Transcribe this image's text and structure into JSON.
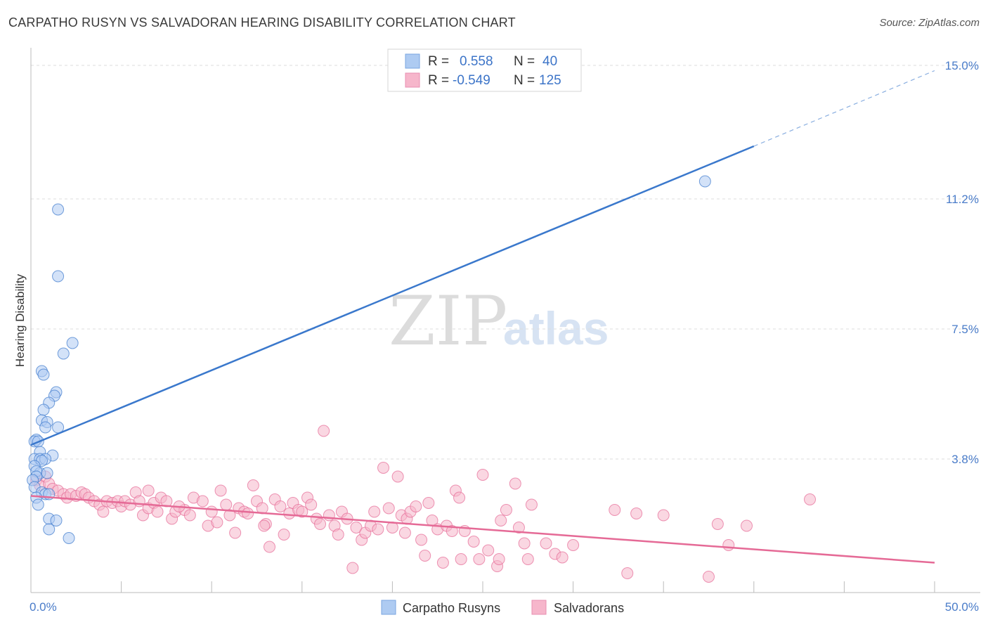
{
  "title": "CARPATHO RUSYN VS SALVADORAN HEARING DISABILITY CORRELATION CHART",
  "source": "Source: ZipAtlas.com",
  "watermark": {
    "zip": "ZIP",
    "atlas": "atlas"
  },
  "colors": {
    "blue": "#3a78cc",
    "blue_fill": "#aecbf2",
    "pink": "#e56a96",
    "pink_fill": "#f6b6cb",
    "grid": "#dcdcdc",
    "tick": "#4a7cc9"
  },
  "legend": {
    "rows": [
      {
        "r_label": "R =",
        "r_value": "0.558",
        "n_label": "N =",
        "n_value": "40"
      },
      {
        "r_label": "R =",
        "r_value": "-0.549",
        "n_label": "N =",
        "n_value": "125"
      }
    ]
  },
  "chart_data": {
    "type": "scatter",
    "title": "CARPATHO RUSYN VS SALVADORAN HEARING DISABILITY CORRELATION CHART",
    "xlabel": "",
    "ylabel": "Hearing Disability",
    "xlim": [
      0,
      50
    ],
    "ylim": [
      0,
      15.3
    ],
    "x_tick_labels": [
      "0.0%",
      "50.0%"
    ],
    "y_ticks": [
      3.8,
      7.5,
      11.2,
      15.0
    ],
    "y_tick_labels": [
      "3.8%",
      "7.5%",
      "11.2%",
      "15.0%"
    ],
    "grid": true,
    "series": [
      {
        "name": "Carpatho Rusyns",
        "color": "blue",
        "points": [
          [
            1.5,
            10.9
          ],
          [
            1.5,
            9.0
          ],
          [
            2.3,
            7.1
          ],
          [
            1.8,
            6.8
          ],
          [
            0.6,
            6.3
          ],
          [
            0.7,
            6.2
          ],
          [
            1.4,
            5.7
          ],
          [
            1.3,
            5.6
          ],
          [
            1.0,
            5.4
          ],
          [
            0.7,
            5.2
          ],
          [
            0.6,
            4.9
          ],
          [
            0.9,
            4.85
          ],
          [
            1.5,
            4.7
          ],
          [
            0.8,
            4.7
          ],
          [
            0.3,
            4.35
          ],
          [
            0.2,
            4.3
          ],
          [
            0.4,
            4.3
          ],
          [
            0.5,
            4.0
          ],
          [
            1.2,
            3.9
          ],
          [
            0.2,
            3.8
          ],
          [
            0.5,
            3.8
          ],
          [
            0.8,
            3.8
          ],
          [
            0.6,
            3.75
          ],
          [
            0.2,
            3.6
          ],
          [
            0.5,
            3.4
          ],
          [
            0.3,
            3.45
          ],
          [
            0.9,
            3.4
          ],
          [
            0.3,
            3.3
          ],
          [
            0.1,
            3.2
          ],
          [
            0.2,
            3.0
          ],
          [
            0.6,
            2.85
          ],
          [
            0.8,
            2.8
          ],
          [
            1.0,
            2.8
          ],
          [
            0.3,
            2.7
          ],
          [
            0.4,
            2.5
          ],
          [
            1.0,
            2.1
          ],
          [
            1.4,
            2.05
          ],
          [
            1.0,
            1.8
          ],
          [
            2.1,
            1.55
          ],
          [
            37.3,
            11.7
          ]
        ],
        "trend": {
          "x0": 0,
          "y0": 4.2,
          "x1": 40,
          "y1": 12.7,
          "x_dash_end": 50,
          "y_dash_end": 14.85
        }
      },
      {
        "name": "Salvadorans",
        "color": "pink",
        "points": [
          [
            0.3,
            3.2
          ],
          [
            0.5,
            3.05
          ],
          [
            0.8,
            3.3
          ],
          [
            1.0,
            3.1
          ],
          [
            1.2,
            2.95
          ],
          [
            1.5,
            2.9
          ],
          [
            1.8,
            2.8
          ],
          [
            2.0,
            2.7
          ],
          [
            2.2,
            2.8
          ],
          [
            2.5,
            2.75
          ],
          [
            2.8,
            2.85
          ],
          [
            3.0,
            2.8
          ],
          [
            3.2,
            2.7
          ],
          [
            3.5,
            2.6
          ],
          [
            3.8,
            2.5
          ],
          [
            4.0,
            2.3
          ],
          [
            4.2,
            2.6
          ],
          [
            4.5,
            2.55
          ],
          [
            4.8,
            2.6
          ],
          [
            5.0,
            2.45
          ],
          [
            5.2,
            2.6
          ],
          [
            5.5,
            2.5
          ],
          [
            5.8,
            2.85
          ],
          [
            6.0,
            2.6
          ],
          [
            6.2,
            2.2
          ],
          [
            6.5,
            2.4
          ],
          [
            6.8,
            2.55
          ],
          [
            7.0,
            2.3
          ],
          [
            7.2,
            2.7
          ],
          [
            7.5,
            2.6
          ],
          [
            7.8,
            2.1
          ],
          [
            8.0,
            2.3
          ],
          [
            8.5,
            2.35
          ],
          [
            8.8,
            2.2
          ],
          [
            9.0,
            2.7
          ],
          [
            9.5,
            2.6
          ],
          [
            9.8,
            1.9
          ],
          [
            10.0,
            2.3
          ],
          [
            10.3,
            2.0
          ],
          [
            10.5,
            2.9
          ],
          [
            10.8,
            2.5
          ],
          [
            11.0,
            2.2
          ],
          [
            11.3,
            1.7
          ],
          [
            11.5,
            2.4
          ],
          [
            11.8,
            2.3
          ],
          [
            12.0,
            2.25
          ],
          [
            12.3,
            3.05
          ],
          [
            12.5,
            2.6
          ],
          [
            12.8,
            2.4
          ],
          [
            13.0,
            1.95
          ],
          [
            13.2,
            1.3
          ],
          [
            13.5,
            2.65
          ],
          [
            13.8,
            2.45
          ],
          [
            14.0,
            1.65
          ],
          [
            14.3,
            2.25
          ],
          [
            14.5,
            2.55
          ],
          [
            14.8,
            2.35
          ],
          [
            15.0,
            2.3
          ],
          [
            15.3,
            2.7
          ],
          [
            15.5,
            2.5
          ],
          [
            15.8,
            2.1
          ],
          [
            16.0,
            1.95
          ],
          [
            16.2,
            4.6
          ],
          [
            16.5,
            2.2
          ],
          [
            16.8,
            1.9
          ],
          [
            17.0,
            1.65
          ],
          [
            17.2,
            2.3
          ],
          [
            17.5,
            2.1
          ],
          [
            17.8,
            0.7
          ],
          [
            18.0,
            1.85
          ],
          [
            18.3,
            1.5
          ],
          [
            18.5,
            1.7
          ],
          [
            18.8,
            1.9
          ],
          [
            19.0,
            2.3
          ],
          [
            19.2,
            1.8
          ],
          [
            19.5,
            3.55
          ],
          [
            19.8,
            2.4
          ],
          [
            20.0,
            1.85
          ],
          [
            20.3,
            3.3
          ],
          [
            20.5,
            2.2
          ],
          [
            20.8,
            2.1
          ],
          [
            21.0,
            2.3
          ],
          [
            21.3,
            2.45
          ],
          [
            21.6,
            1.5
          ],
          [
            21.8,
            1.05
          ],
          [
            22.0,
            2.55
          ],
          [
            22.2,
            2.05
          ],
          [
            22.5,
            1.8
          ],
          [
            22.8,
            0.85
          ],
          [
            23.0,
            1.9
          ],
          [
            23.3,
            1.75
          ],
          [
            23.5,
            2.9
          ],
          [
            23.8,
            0.95
          ],
          [
            24.0,
            1.75
          ],
          [
            24.5,
            1.45
          ],
          [
            24.8,
            0.95
          ],
          [
            25.0,
            3.35
          ],
          [
            25.3,
            1.2
          ],
          [
            25.8,
            0.75
          ],
          [
            25.9,
            0.95
          ],
          [
            26.0,
            2.05
          ],
          [
            26.3,
            2.35
          ],
          [
            26.8,
            3.1
          ],
          [
            27.0,
            1.85
          ],
          [
            27.3,
            1.4
          ],
          [
            27.5,
            0.95
          ],
          [
            27.7,
            2.5
          ],
          [
            28.5,
            1.4
          ],
          [
            29.0,
            1.1
          ],
          [
            29.4,
            1.0
          ],
          [
            30.0,
            1.35
          ],
          [
            32.3,
            2.35
          ],
          [
            33.0,
            0.55
          ],
          [
            33.5,
            2.25
          ],
          [
            35.0,
            2.2
          ],
          [
            37.5,
            0.45
          ],
          [
            38.0,
            1.95
          ],
          [
            38.6,
            1.35
          ],
          [
            39.6,
            1.9
          ],
          [
            43.1,
            2.65
          ],
          [
            6.5,
            2.9
          ],
          [
            8.2,
            2.45
          ],
          [
            12.9,
            1.9
          ],
          [
            20.7,
            1.7
          ],
          [
            23.7,
            2.7
          ]
        ],
        "trend": {
          "x0": 0,
          "y0": 2.75,
          "x1": 50,
          "y1": 0.85
        }
      }
    ]
  },
  "bottom_legend": [
    {
      "label": "Carpatho Rusyns",
      "color": "blue"
    },
    {
      "label": "Salvadorans",
      "color": "pink"
    }
  ]
}
